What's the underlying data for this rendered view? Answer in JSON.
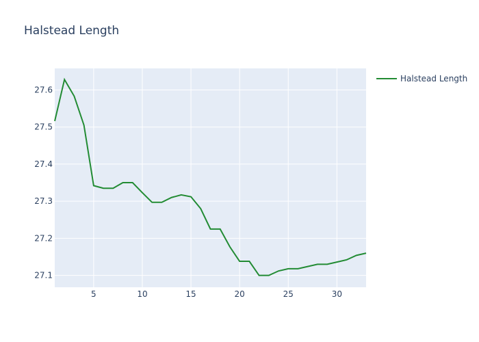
{
  "chart_data": {
    "type": "line",
    "title": "Halstead Length",
    "xlabel": "",
    "ylabel": "",
    "xlim": [
      1,
      33
    ],
    "ylim": [
      27.068,
      27.658
    ],
    "xticks": [
      5,
      10,
      15,
      20,
      25,
      30
    ],
    "yticks": [
      27.1,
      27.2,
      27.3,
      27.4,
      27.5,
      27.6
    ],
    "grid": true,
    "legend_position": "top-right",
    "background": "#e5ecf6",
    "series": [
      {
        "name": "Halstead Length",
        "color": "#228b33",
        "x": [
          1,
          2,
          3,
          4,
          5,
          6,
          7,
          8,
          9,
          10,
          11,
          12,
          13,
          14,
          15,
          16,
          17,
          18,
          19,
          20,
          21,
          22,
          23,
          24,
          25,
          26,
          27,
          28,
          29,
          30,
          31,
          32,
          33
        ],
        "y": [
          27.516,
          27.628,
          27.583,
          27.505,
          27.342,
          27.335,
          27.335,
          27.35,
          27.35,
          27.323,
          27.297,
          27.297,
          27.31,
          27.317,
          27.312,
          27.28,
          27.225,
          27.225,
          27.177,
          27.138,
          27.138,
          27.1,
          27.1,
          27.112,
          27.118,
          27.118,
          27.124,
          27.13,
          27.13,
          27.136,
          27.142,
          27.154,
          27.16
        ]
      }
    ]
  }
}
